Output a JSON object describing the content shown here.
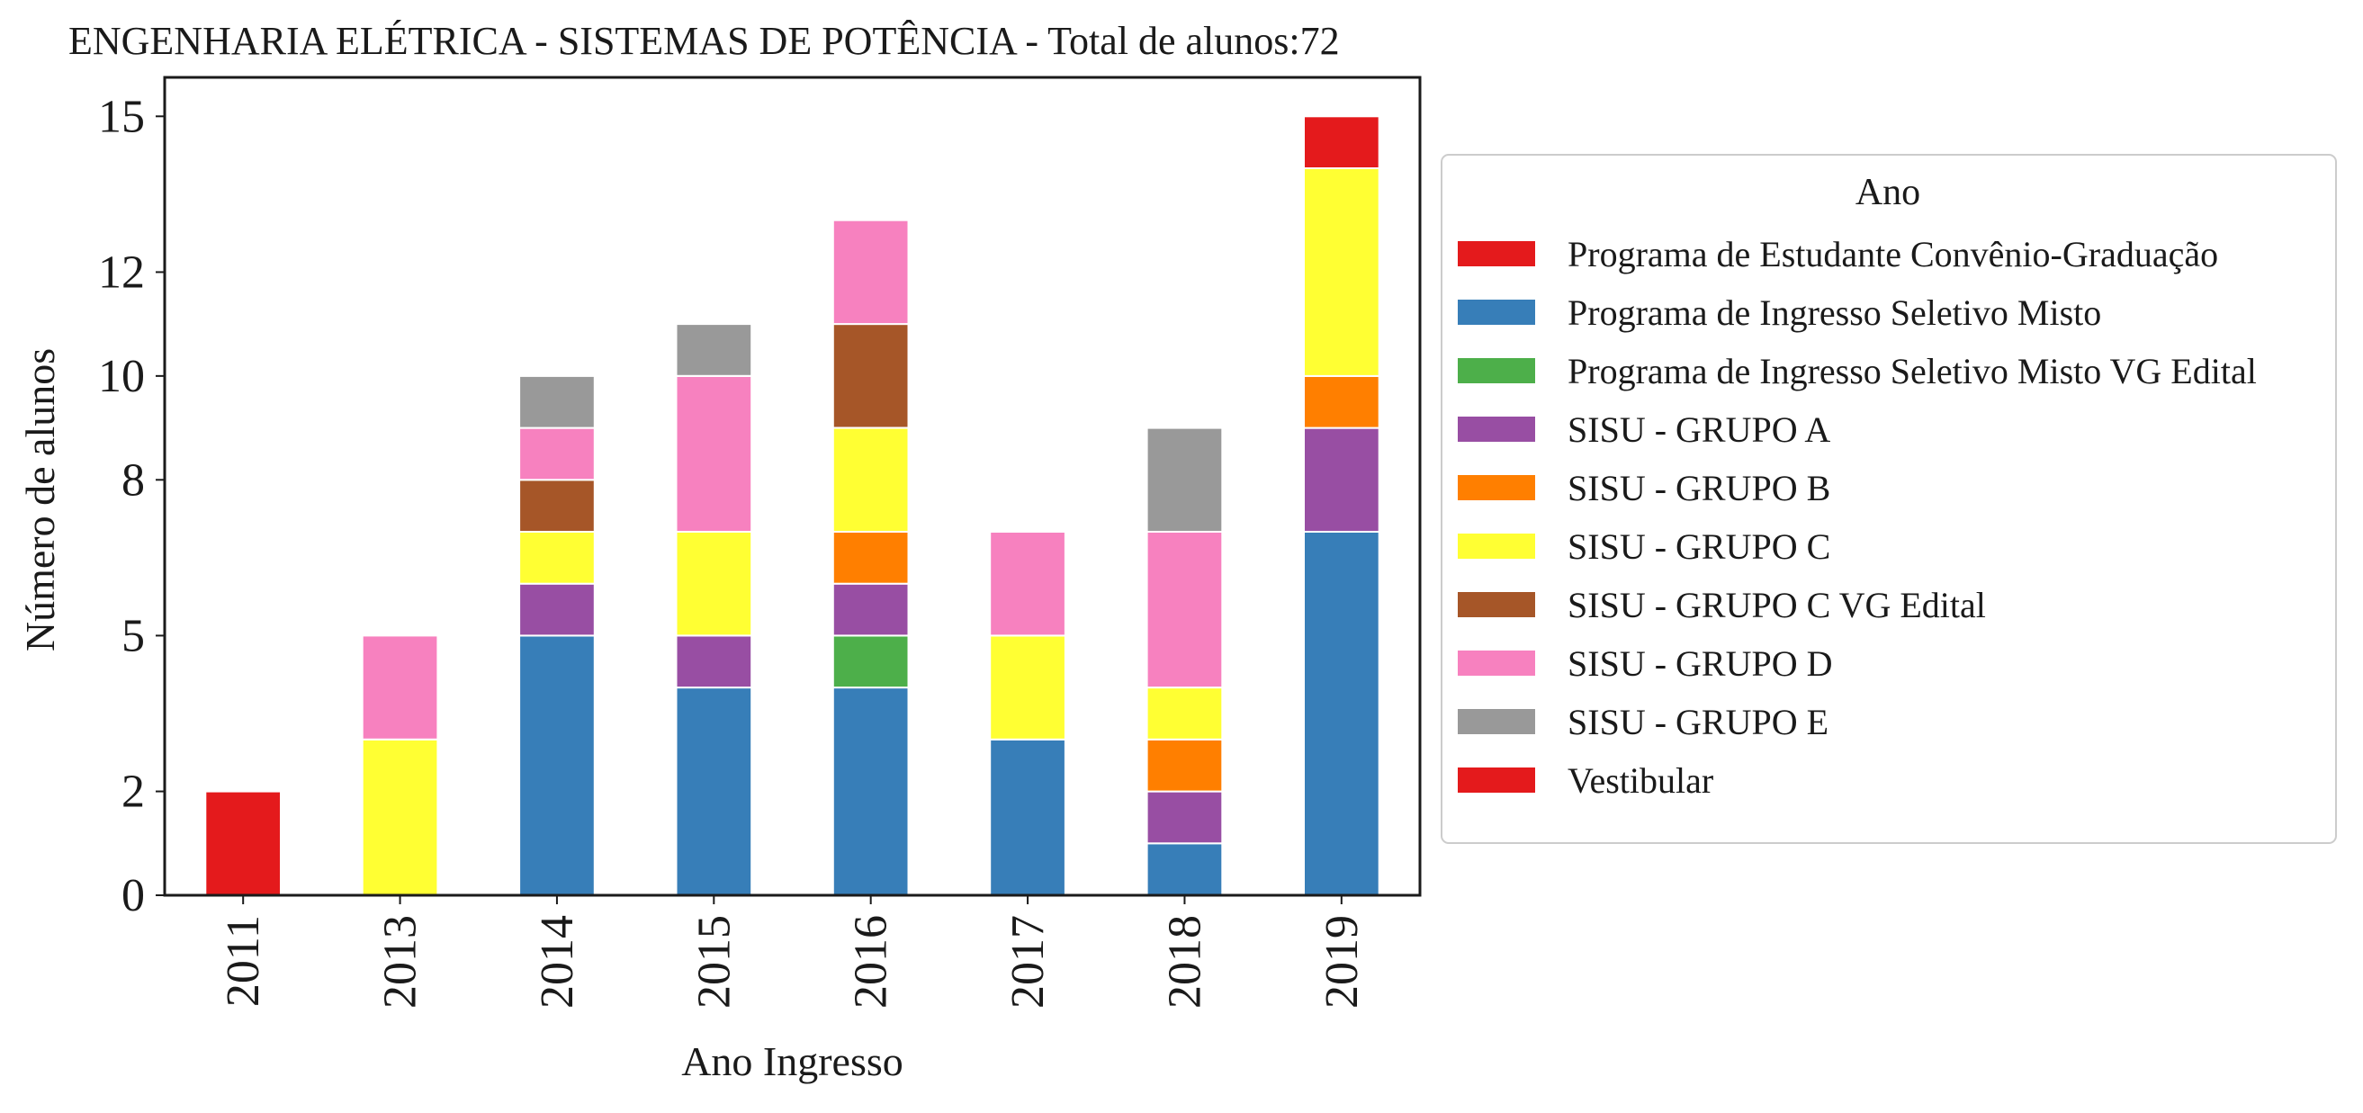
{
  "chart_data": {
    "type": "bar",
    "stacked": true,
    "title": "ENGENHARIA ELÉTRICA - SISTEMAS DE POTÊNCIA - Total de alunos:72",
    "xlabel": "Ano Ingresso",
    "ylabel": "Número de alunos",
    "categories": [
      "2011",
      "2013",
      "2014",
      "2015",
      "2016",
      "2017",
      "2018",
      "2019"
    ],
    "yticks": [
      "0",
      "2",
      "5",
      "8",
      "10",
      "12",
      "15"
    ],
    "ylim": [
      0,
      15.75
    ],
    "grid": false,
    "legend": {
      "title": "Ano",
      "placement": "center-right, outside plot"
    },
    "series": [
      {
        "name": "Programa de Estudante Convênio-Graduação",
        "color": "#e41a1c",
        "values": [
          2,
          0,
          0,
          0,
          0,
          0,
          0,
          0
        ]
      },
      {
        "name": "Programa de Ingresso Seletivo Misto",
        "color": "#377eb8",
        "values": [
          0,
          0,
          5,
          4,
          4,
          3,
          1,
          7
        ]
      },
      {
        "name": "Programa de Ingresso Seletivo Misto VG Edital",
        "color": "#4daf4a",
        "values": [
          0,
          0,
          0,
          0,
          1,
          0,
          0,
          0
        ]
      },
      {
        "name": "SISU - GRUPO A",
        "color": "#984ea3",
        "values": [
          0,
          0,
          1,
          1,
          1,
          0,
          1,
          2
        ]
      },
      {
        "name": "SISU - GRUPO B",
        "color": "#ff7f00",
        "values": [
          0,
          0,
          0,
          0,
          1,
          0,
          1,
          1
        ]
      },
      {
        "name": "SISU - GRUPO C",
        "color": "#ffff33",
        "values": [
          0,
          3,
          1,
          2,
          2,
          2,
          1,
          4
        ]
      },
      {
        "name": "SISU - GRUPO C VG Edital",
        "color": "#a65628",
        "values": [
          0,
          0,
          1,
          0,
          2,
          0,
          0,
          0
        ]
      },
      {
        "name": "SISU - GRUPO D",
        "color": "#f781bf",
        "values": [
          0,
          2,
          1,
          3,
          2,
          2,
          3,
          0
        ]
      },
      {
        "name": "SISU - GRUPO E",
        "color": "#999999",
        "values": [
          0,
          0,
          1,
          1,
          0,
          0,
          2,
          0
        ]
      },
      {
        "name": "Vestibular",
        "color": "#e41a1c",
        "values": [
          0,
          0,
          0,
          0,
          0,
          0,
          0,
          1
        ]
      }
    ]
  }
}
